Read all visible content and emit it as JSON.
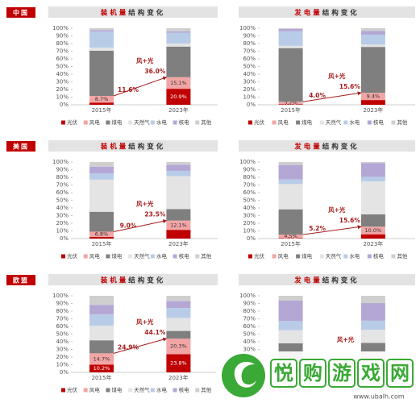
{
  "regions": [
    "中国",
    "美国",
    "欧盟"
  ],
  "watermark": {
    "name": "悦购游戏网",
    "url": "www.ubalh.com"
  },
  "chart_data": [
    {
      "type": "stacked_bar",
      "title_highlight": "装机量",
      "title_rest": "结构变化",
      "categories": [
        "2015年",
        "2023年"
      ],
      "ylim": [
        0,
        100
      ],
      "yticks": [
        {
          "value": 0,
          "label": "0%"
        },
        {
          "value": 10,
          "label": "10%"
        },
        {
          "value": 20,
          "label": "20%"
        },
        {
          "value": 30,
          "label": "30%"
        },
        {
          "value": 40,
          "label": "40%"
        },
        {
          "value": 50,
          "label": "50%"
        },
        {
          "value": 60,
          "label": "60%"
        },
        {
          "value": 70,
          "label": "70%"
        },
        {
          "value": 80,
          "label": "80%"
        },
        {
          "value": 90,
          "label": "90%"
        },
        {
          "value": 100,
          "label": "100%"
        }
      ],
      "series": [
        {
          "name": "光伏",
          "color": "#c00000",
          "values": [
            2.9,
            20.9
          ],
          "value_labels": [
            null,
            "20.9%"
          ]
        },
        {
          "name": "风电",
          "color": "#f2a5a5",
          "values": [
            8.7,
            15.1
          ],
          "value_labels": [
            "8.7%",
            "15.1%"
          ]
        },
        {
          "name": "煤电",
          "color": "#7f7f7f",
          "values": [
            59,
            40
          ]
        },
        {
          "name": "天然气",
          "color": "#e4e4e4",
          "values": [
            4,
            4
          ]
        },
        {
          "name": "水电",
          "color": "#b8cce8",
          "values": [
            21,
            14
          ]
        },
        {
          "name": "核电",
          "color": "#b4a7d6",
          "values": [
            2,
            2
          ]
        },
        {
          "name": "其他",
          "color": "#cfcfcf",
          "values": [
            2.4,
            4
          ]
        }
      ],
      "wind_solar": {
        "label": "风+光",
        "values": [
          11.6,
          36.0
        ],
        "value_labels": [
          "11.6%",
          "36.0%"
        ]
      }
    },
    {
      "type": "stacked_bar",
      "title_highlight": "发电量",
      "title_rest": "结构变化",
      "categories": [
        "2015年",
        "2023年"
      ],
      "ylim": [
        0,
        100
      ],
      "yticks": [
        {
          "value": 0,
          "label": "0%"
        },
        {
          "value": 10,
          "label": "10%"
        },
        {
          "value": 20,
          "label": "20%"
        },
        {
          "value": 30,
          "label": "30%"
        },
        {
          "value": 40,
          "label": "40%"
        },
        {
          "value": 50,
          "label": "50%"
        },
        {
          "value": 60,
          "label": "60%"
        },
        {
          "value": 70,
          "label": "70%"
        },
        {
          "value": 80,
          "label": "80%"
        },
        {
          "value": 90,
          "label": "90%"
        },
        {
          "value": 100,
          "label": "100%"
        }
      ],
      "series": [
        {
          "name": "光伏",
          "color": "#c00000",
          "values": [
            0.8,
            6.2
          ],
          "value_labels": [
            "0.8%",
            null
          ]
        },
        {
          "name": "风电",
          "color": "#f2a5a5",
          "values": [
            3.2,
            9.4
          ],
          "value_labels": [
            "3.2%",
            "9.4%"
          ]
        },
        {
          "name": "煤电",
          "color": "#7f7f7f",
          "values": [
            70,
            60
          ]
        },
        {
          "name": "天然气",
          "color": "#e4e4e4",
          "values": [
            3,
            3
          ]
        },
        {
          "name": "水电",
          "color": "#b8cce8",
          "values": [
            19,
            13
          ]
        },
        {
          "name": "核电",
          "color": "#b4a7d6",
          "values": [
            3,
            5
          ]
        },
        {
          "name": "其他",
          "color": "#cfcfcf",
          "values": [
            1,
            3.4
          ]
        }
      ],
      "wind_solar": {
        "label": "风+光",
        "values": [
          4.0,
          15.6
        ],
        "value_labels": [
          "4.0%",
          "15.6%"
        ]
      }
    },
    {
      "type": "stacked_bar",
      "title_highlight": "装机量",
      "title_rest": "结构变化",
      "categories": [
        "2015年",
        "2023年"
      ],
      "ylim": [
        0,
        100
      ],
      "yticks": [
        {
          "value": 0,
          "label": "0%"
        },
        {
          "value": 10,
          "label": "10%"
        },
        {
          "value": 20,
          "label": "20%"
        },
        {
          "value": 30,
          "label": "30%"
        },
        {
          "value": 40,
          "label": "40%"
        },
        {
          "value": 50,
          "label": "50%"
        },
        {
          "value": 60,
          "label": "60%"
        },
        {
          "value": 70,
          "label": "70%"
        },
        {
          "value": 80,
          "label": "80%"
        },
        {
          "value": 90,
          "label": "90%"
        },
        {
          "value": 100,
          "label": "100%"
        }
      ],
      "series": [
        {
          "name": "光伏",
          "color": "#c00000",
          "values": [
            2.2,
            11.4
          ]
        },
        {
          "name": "风电",
          "color": "#f2a5a5",
          "values": [
            6.8,
            12.1
          ],
          "value_labels": [
            "6.8%",
            "12.1%"
          ]
        },
        {
          "name": "煤电",
          "color": "#7f7f7f",
          "values": [
            26,
            15
          ]
        },
        {
          "name": "天然气",
          "color": "#e4e4e4",
          "values": [
            42,
            43
          ]
        },
        {
          "name": "水电",
          "color": "#b8cce8",
          "values": [
            8,
            7
          ]
        },
        {
          "name": "核电",
          "color": "#b4a7d6",
          "values": [
            9,
            8
          ]
        },
        {
          "name": "其他",
          "color": "#cfcfcf",
          "values": [
            6,
            3.5
          ]
        }
      ],
      "wind_solar": {
        "label": "风+光",
        "values": [
          9.0,
          23.5
        ],
        "value_labels": [
          "9.0%",
          "23.5%"
        ]
      }
    },
    {
      "type": "stacked_bar",
      "title_highlight": "发电量",
      "title_rest": "结构变化",
      "categories": [
        "2015年",
        "2023年"
      ],
      "ylim": [
        0,
        100
      ],
      "yticks": [
        {
          "value": 0,
          "label": "0%"
        },
        {
          "value": 10,
          "label": "10%"
        },
        {
          "value": 20,
          "label": "20%"
        },
        {
          "value": 30,
          "label": "30%"
        },
        {
          "value": 40,
          "label": "40%"
        },
        {
          "value": 50,
          "label": "50%"
        },
        {
          "value": 60,
          "label": "60%"
        },
        {
          "value": 70,
          "label": "70%"
        },
        {
          "value": 80,
          "label": "80%"
        },
        {
          "value": 90,
          "label": "90%"
        },
        {
          "value": 100,
          "label": "100%"
        }
      ],
      "series": [
        {
          "name": "光伏",
          "color": "#c00000",
          "values": [
            0.7,
            5.6
          ],
          "value_labels": [
            "0.7%",
            null
          ]
        },
        {
          "name": "风电",
          "color": "#f2a5a5",
          "values": [
            4.5,
            10.0
          ],
          "value_labels": [
            "4.5%",
            "10.0%"
          ]
        },
        {
          "name": "煤电",
          "color": "#7f7f7f",
          "values": [
            33,
            16
          ]
        },
        {
          "name": "天然气",
          "color": "#e4e4e4",
          "values": [
            33,
            43
          ]
        },
        {
          "name": "水电",
          "color": "#b8cce8",
          "values": [
            6,
            6
          ]
        },
        {
          "name": "核电",
          "color": "#b4a7d6",
          "values": [
            19,
            18
          ]
        },
        {
          "name": "其他",
          "color": "#cfcfcf",
          "values": [
            3.8,
            1.4
          ]
        }
      ],
      "wind_solar": {
        "label": "风+光",
        "values": [
          5.2,
          15.6
        ],
        "value_labels": [
          "5.2%",
          "15.6%"
        ]
      }
    },
    {
      "type": "stacked_bar",
      "title_highlight": "装机量",
      "title_rest": "结构变化",
      "categories": [
        "2015年",
        "2023年"
      ],
      "ylim": [
        0,
        100
      ],
      "yticks": [
        {
          "value": 0,
          "label": "0%"
        },
        {
          "value": 10,
          "label": "10%"
        },
        {
          "value": 20,
          "label": "20%"
        },
        {
          "value": 30,
          "label": "30%"
        },
        {
          "value": 40,
          "label": "40%"
        },
        {
          "value": 50,
          "label": "50%"
        },
        {
          "value": 60,
          "label": "60%"
        },
        {
          "value": 70,
          "label": "70%"
        },
        {
          "value": 80,
          "label": "80%"
        },
        {
          "value": 90,
          "label": "90%"
        },
        {
          "value": 100,
          "label": "100%"
        }
      ],
      "series": [
        {
          "name": "光伏",
          "color": "#c00000",
          "values": [
            10.2,
            23.8
          ],
          "value_labels": [
            "10.2%",
            "23.8%"
          ]
        },
        {
          "name": "风电",
          "color": "#f2a5a5",
          "values": [
            14.7,
            20.3
          ],
          "value_labels": [
            "14.7%",
            "20.3%"
          ]
        },
        {
          "name": "煤电",
          "color": "#7f7f7f",
          "values": [
            17,
            10
          ]
        },
        {
          "name": "天然气",
          "color": "#e4e4e4",
          "values": [
            19,
            17
          ]
        },
        {
          "name": "水电",
          "color": "#b8cce8",
          "values": [
            15,
            13
          ]
        },
        {
          "name": "核电",
          "color": "#b4a7d6",
          "values": [
            12,
            9
          ]
        },
        {
          "name": "其他",
          "color": "#cfcfcf",
          "values": [
            12.1,
            6.9
          ]
        }
      ],
      "wind_solar": {
        "label": "风+光",
        "values": [
          24.9,
          44.1
        ],
        "value_labels": [
          "24.9%",
          "44.1%"
        ]
      }
    },
    {
      "type": "stacked_bar",
      "title_highlight": "发电量",
      "title_rest": "结构变化",
      "categories": [
        "2015年",
        "2023年"
      ],
      "ylim": [
        0,
        100
      ],
      "yticks": [
        {
          "value": 0,
          "label": "0%"
        },
        {
          "value": 10,
          "label": "10%"
        },
        {
          "value": 20,
          "label": "20%"
        },
        {
          "value": 30,
          "label": "30%"
        },
        {
          "value": 40,
          "label": "40%"
        },
        {
          "value": 50,
          "label": "50%"
        },
        {
          "value": 60,
          "label": "60%"
        },
        {
          "value": 70,
          "label": "70%"
        },
        {
          "value": 80,
          "label": "80%"
        },
        {
          "value": 90,
          "label": "90%"
        },
        {
          "value": 100,
          "label": "100%"
        }
      ],
      "series": [
        {
          "name": "光伏",
          "color": "#c00000",
          "values": [
            3.5,
            9
          ]
        },
        {
          "name": "风电",
          "color": "#f2a5a5",
          "values": [
            9.5,
            17.5
          ]
        },
        {
          "name": "煤电",
          "color": "#7f7f7f",
          "values": [
            25,
            12
          ]
        },
        {
          "name": "天然气",
          "color": "#e4e4e4",
          "values": [
            17,
            17
          ]
        },
        {
          "name": "水电",
          "color": "#b8cce8",
          "values": [
            12,
            12
          ]
        },
        {
          "name": "核电",
          "color": "#b4a7d6",
          "values": [
            27,
            23
          ]
        },
        {
          "name": "其他",
          "color": "#cfcfcf",
          "values": [
            6,
            9.5
          ]
        }
      ],
      "wind_solar": {
        "label": "风+光"
      }
    }
  ]
}
